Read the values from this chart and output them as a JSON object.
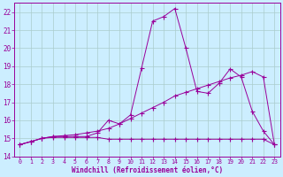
{
  "background_color": "#cceeff",
  "grid_color": "#aacccc",
  "line_color": "#990099",
  "xlabel": "Windchill (Refroidissement éolien,°C)",
  "ylim": [
    14.0,
    22.5
  ],
  "xlim": [
    -0.5,
    23.5
  ],
  "yticks": [
    14,
    15,
    16,
    17,
    18,
    19,
    20,
    21,
    22
  ],
  "x_ticks": [
    0,
    1,
    2,
    3,
    4,
    5,
    6,
    7,
    8,
    9,
    10,
    11,
    12,
    13,
    14,
    15,
    16,
    17,
    18,
    19,
    20,
    21,
    22,
    23
  ],
  "line1_x": [
    0,
    1,
    2,
    3,
    4,
    5,
    6,
    7,
    8,
    9,
    10,
    11,
    12,
    13,
    14,
    15,
    16,
    17,
    18,
    19,
    20,
    21,
    22,
    23
  ],
  "line1_y": [
    14.65,
    14.82,
    15.0,
    15.05,
    15.05,
    15.05,
    15.05,
    15.05,
    14.95,
    14.95,
    14.95,
    14.95,
    14.95,
    14.95,
    14.95,
    14.95,
    14.95,
    14.95,
    14.95,
    14.95,
    14.95,
    14.95,
    14.95,
    14.65
  ],
  "line2_x": [
    0,
    1,
    2,
    3,
    4,
    5,
    6,
    7,
    8,
    9,
    10,
    11,
    12,
    13,
    14,
    15,
    16,
    17,
    18,
    19,
    20,
    21,
    22,
    23
  ],
  "line2_y": [
    14.65,
    14.82,
    15.0,
    15.1,
    15.15,
    15.2,
    15.3,
    15.4,
    15.55,
    15.8,
    16.1,
    16.4,
    16.7,
    17.0,
    17.35,
    17.55,
    17.75,
    17.95,
    18.15,
    18.35,
    18.5,
    18.7,
    18.4,
    14.65
  ],
  "line3_x": [
    0,
    1,
    2,
    3,
    4,
    5,
    6,
    7,
    8,
    9,
    10,
    11,
    12,
    13,
    14,
    15,
    16,
    17,
    18,
    19,
    20,
    21,
    22,
    23
  ],
  "line3_y": [
    14.65,
    14.82,
    15.0,
    15.1,
    15.1,
    15.1,
    15.1,
    15.3,
    16.0,
    15.8,
    16.3,
    18.9,
    21.5,
    21.75,
    22.2,
    20.0,
    17.6,
    17.5,
    18.05,
    18.85,
    18.4,
    16.5,
    15.4,
    14.65
  ],
  "markersize": 2.0
}
